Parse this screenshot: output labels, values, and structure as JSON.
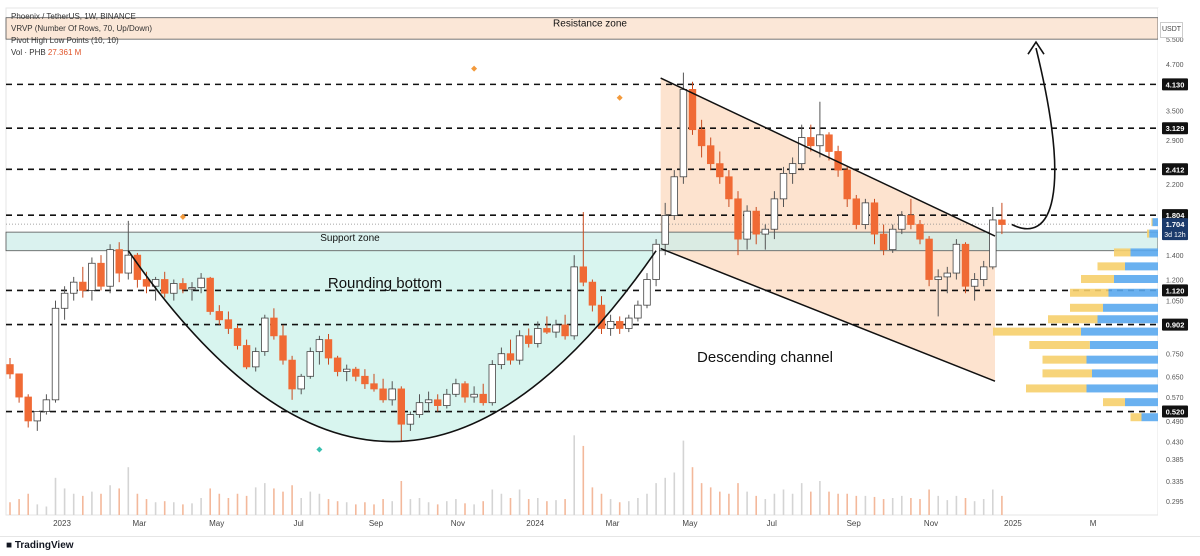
{
  "header": {
    "line1": "Phoenix / TetherUS, 1W, BINANCE",
    "line2": "VRVP (Number Of Rows, 70, Up/Down)",
    "line3": "Pivot High Low Points (10, 10)",
    "line4_label": "Vol · PHB",
    "line4_value": "27.361 M",
    "quote": "USDT"
  },
  "footer": {
    "brand": "TradingView"
  },
  "colors": {
    "up": "#9e9e9e",
    "down": "#f06a35",
    "cupFill": "#d8f5ef",
    "channelFill": "#fde3cf",
    "support": "#cdeee9",
    "resistance": "#fbe7d7",
    "volDown": "#f3b89b",
    "volUp": "#d4d4d4",
    "profileUp": "#5aa9ee",
    "profileDown": "#f6cf6b"
  },
  "chart_data": {
    "type": "candlestick",
    "title": "Phoenix / TetherUS, 1W, BINANCE",
    "y_scale": "log",
    "ylim": [
      0.27,
      6.7
    ],
    "y_ticks": [
      5.5,
      4.7,
      4.13,
      3.5,
      3.129,
      2.9,
      2.412,
      2.2,
      1.804,
      1.704,
      1.4,
      1.2,
      1.12,
      1.05,
      0.902,
      0.75,
      0.65,
      0.57,
      0.52,
      0.49,
      0.43,
      0.385,
      0.335,
      0.295
    ],
    "x_labels": [
      "2023",
      "Mar",
      "May",
      "Jul",
      "Sep",
      "Nov",
      "2024",
      "Mar",
      "May",
      "Jul",
      "Sep",
      "Nov",
      "2025",
      "M"
    ],
    "levels": [
      5.5,
      4.13,
      3.129,
      2.412,
      1.804,
      1.12,
      0.902,
      0.52
    ],
    "level_labels": [
      "4.130",
      "3.129",
      "2.412",
      "1.804",
      "1.120",
      "0.902",
      "0.520"
    ],
    "current_price": "1.704",
    "countdown": "3d 12h",
    "zones": [
      {
        "name": "Resistance zone",
        "range": [
          5.5,
          6.3
        ]
      },
      {
        "name": "Support zone",
        "range": [
          1.44,
          1.62
        ]
      }
    ],
    "patterns": [
      "Rounding bottom",
      "Descending channel"
    ],
    "pivots": [
      {
        "week": 19,
        "price": 1.74,
        "type": "high"
      },
      {
        "week": 51,
        "price": 4.45,
        "type": "high"
      },
      {
        "week": 67,
        "price": 3.7,
        "type": "high"
      },
      {
        "week": 34,
        "price": 0.43,
        "type": "low"
      }
    ],
    "candles": [
      [
        0.7,
        0.73,
        0.64,
        0.66
      ],
      [
        0.66,
        0.66,
        0.55,
        0.57
      ],
      [
        0.57,
        0.58,
        0.47,
        0.49
      ],
      [
        0.49,
        0.51,
        0.46,
        0.52
      ],
      [
        0.52,
        0.58,
        0.51,
        0.56
      ],
      [
        0.56,
        1.05,
        0.55,
        1.0
      ],
      [
        1.0,
        1.15,
        0.93,
        1.1
      ],
      [
        1.1,
        1.22,
        1.05,
        1.18
      ],
      [
        1.18,
        1.3,
        1.07,
        1.12
      ],
      [
        1.12,
        1.38,
        1.05,
        1.33
      ],
      [
        1.33,
        1.4,
        1.12,
        1.15
      ],
      [
        1.15,
        1.5,
        1.1,
        1.45
      ],
      [
        1.45,
        1.52,
        1.18,
        1.25
      ],
      [
        1.25,
        1.74,
        1.2,
        1.4
      ],
      [
        1.4,
        1.42,
        1.14,
        1.2
      ],
      [
        1.2,
        1.26,
        1.1,
        1.15
      ],
      [
        1.15,
        1.22,
        1.05,
        1.2
      ],
      [
        1.2,
        1.26,
        1.07,
        1.1
      ],
      [
        1.1,
        1.2,
        1.05,
        1.17
      ],
      [
        1.17,
        1.21,
        1.1,
        1.13
      ],
      [
        1.13,
        1.18,
        1.05,
        1.14
      ],
      [
        1.14,
        1.25,
        1.1,
        1.21
      ],
      [
        1.21,
        1.22,
        0.96,
        0.98
      ],
      [
        0.98,
        1.02,
        0.9,
        0.93
      ],
      [
        0.93,
        0.98,
        0.85,
        0.88
      ],
      [
        0.88,
        0.9,
        0.77,
        0.79
      ],
      [
        0.79,
        0.82,
        0.68,
        0.69
      ],
      [
        0.69,
        0.78,
        0.67,
        0.76
      ],
      [
        0.76,
        0.96,
        0.74,
        0.94
      ],
      [
        0.94,
        1.0,
        0.82,
        0.84
      ],
      [
        0.84,
        0.9,
        0.7,
        0.72
      ],
      [
        0.72,
        0.74,
        0.56,
        0.6
      ],
      [
        0.6,
        0.66,
        0.58,
        0.65
      ],
      [
        0.65,
        0.78,
        0.64,
        0.76
      ],
      [
        0.76,
        0.84,
        0.7,
        0.82
      ],
      [
        0.82,
        0.85,
        0.7,
        0.73
      ],
      [
        0.73,
        0.74,
        0.65,
        0.67
      ],
      [
        0.67,
        0.7,
        0.63,
        0.68
      ],
      [
        0.68,
        0.69,
        0.63,
        0.65
      ],
      [
        0.65,
        0.68,
        0.6,
        0.62
      ],
      [
        0.62,
        0.66,
        0.59,
        0.6
      ],
      [
        0.6,
        0.64,
        0.55,
        0.56
      ],
      [
        0.56,
        0.63,
        0.54,
        0.6
      ],
      [
        0.6,
        0.61,
        0.43,
        0.48
      ],
      [
        0.48,
        0.52,
        0.46,
        0.51
      ],
      [
        0.51,
        0.58,
        0.5,
        0.55
      ],
      [
        0.55,
        0.59,
        0.52,
        0.56
      ],
      [
        0.56,
        0.58,
        0.52,
        0.54
      ],
      [
        0.54,
        0.6,
        0.53,
        0.58
      ],
      [
        0.58,
        0.64,
        0.57,
        0.62
      ],
      [
        0.62,
        0.63,
        0.55,
        0.57
      ],
      [
        0.57,
        0.61,
        0.55,
        0.58
      ],
      [
        0.58,
        0.62,
        0.54,
        0.55
      ],
      [
        0.55,
        0.72,
        0.54,
        0.7
      ],
      [
        0.7,
        0.78,
        0.68,
        0.75
      ],
      [
        0.75,
        0.82,
        0.7,
        0.72
      ],
      [
        0.72,
        0.87,
        0.7,
        0.84
      ],
      [
        0.84,
        0.88,
        0.78,
        0.8
      ],
      [
        0.8,
        0.92,
        0.78,
        0.88
      ],
      [
        0.88,
        0.95,
        0.85,
        0.86
      ],
      [
        0.86,
        0.93,
        0.83,
        0.9
      ],
      [
        0.9,
        0.96,
        0.82,
        0.84
      ],
      [
        0.84,
        1.4,
        0.82,
        1.3
      ],
      [
        1.3,
        1.84,
        1.15,
        1.18
      ],
      [
        1.18,
        1.2,
        0.98,
        1.02
      ],
      [
        1.02,
        1.08,
        0.85,
        0.88
      ],
      [
        0.88,
        0.96,
        0.84,
        0.92
      ],
      [
        0.92,
        0.95,
        0.85,
        0.88
      ],
      [
        0.88,
        0.96,
        0.86,
        0.94
      ],
      [
        0.94,
        1.05,
        0.92,
        1.02
      ],
      [
        1.02,
        1.25,
        1.0,
        1.2
      ],
      [
        1.2,
        1.55,
        1.15,
        1.5
      ],
      [
        1.5,
        1.95,
        1.4,
        1.8
      ],
      [
        1.8,
        2.4,
        1.75,
        2.3
      ],
      [
        2.3,
        4.45,
        2.2,
        4.0
      ],
      [
        4.0,
        4.2,
        3.0,
        3.1
      ],
      [
        3.1,
        3.3,
        2.6,
        2.8
      ],
      [
        2.8,
        2.95,
        2.4,
        2.5
      ],
      [
        2.5,
        2.7,
        2.2,
        2.3
      ],
      [
        2.3,
        2.4,
        1.9,
        2.0
      ],
      [
        2.0,
        2.1,
        1.4,
        1.55
      ],
      [
        1.55,
        1.92,
        1.45,
        1.85
      ],
      [
        1.85,
        1.9,
        1.5,
        1.6
      ],
      [
        1.6,
        1.7,
        1.45,
        1.65
      ],
      [
        1.65,
        2.1,
        1.55,
        2.0
      ],
      [
        2.0,
        2.45,
        1.9,
        2.35
      ],
      [
        2.35,
        2.6,
        2.2,
        2.5
      ],
      [
        2.5,
        3.2,
        2.4,
        2.95
      ],
      [
        2.95,
        3.2,
        2.7,
        2.8
      ],
      [
        2.8,
        3.7,
        2.6,
        3.0
      ],
      [
        3.0,
        3.05,
        2.55,
        2.7
      ],
      [
        2.7,
        2.8,
        2.3,
        2.4
      ],
      [
        2.4,
        2.45,
        1.9,
        2.0
      ],
      [
        2.0,
        2.05,
        1.65,
        1.7
      ],
      [
        1.7,
        2.0,
        1.65,
        1.95
      ],
      [
        1.95,
        2.0,
        1.5,
        1.6
      ],
      [
        1.6,
        1.7,
        1.4,
        1.45
      ],
      [
        1.45,
        1.7,
        1.42,
        1.65
      ],
      [
        1.65,
        1.85,
        1.6,
        1.8
      ],
      [
        1.8,
        2.0,
        1.65,
        1.7
      ],
      [
        1.7,
        1.75,
        1.5,
        1.55
      ],
      [
        1.55,
        1.58,
        1.15,
        1.2
      ],
      [
        1.2,
        1.28,
        0.95,
        1.22
      ],
      [
        1.22,
        1.3,
        1.1,
        1.25
      ],
      [
        1.25,
        1.55,
        1.2,
        1.5
      ],
      [
        1.5,
        1.52,
        1.1,
        1.15
      ],
      [
        1.15,
        1.25,
        1.05,
        1.2
      ],
      [
        1.2,
        1.35,
        1.15,
        1.3
      ],
      [
        1.3,
        1.9,
        1.28,
        1.75
      ],
      [
        1.75,
        1.95,
        1.6,
        1.7
      ]
    ],
    "volume": [
      1.2,
      1.5,
      2.0,
      1.0,
      0.8,
      3.5,
      2.5,
      2.0,
      1.8,
      2.2,
      2.0,
      2.8,
      2.5,
      4.5,
      2.0,
      1.5,
      1.2,
      1.3,
      1.2,
      1.0,
      1.1,
      1.6,
      2.5,
      2.0,
      1.6,
      2.0,
      1.8,
      2.6,
      3.0,
      2.5,
      2.2,
      2.8,
      1.6,
      2.2,
      2.0,
      1.5,
      1.3,
      1.2,
      1.0,
      1.2,
      1.0,
      1.5,
      1.3,
      3.2,
      1.5,
      1.6,
      1.2,
      1.0,
      1.3,
      1.5,
      1.1,
      1.0,
      1.3,
      2.4,
      2.0,
      1.6,
      2.4,
      1.5,
      1.6,
      1.3,
      1.4,
      1.5,
      7.5,
      6.5,
      2.6,
      2.0,
      1.5,
      1.2,
      1.3,
      1.6,
      2.0,
      3.0,
      3.5,
      4.0,
      7.0,
      4.5,
      3.0,
      2.6,
      2.2,
      2.0,
      3.0,
      2.2,
      1.8,
      1.5,
      2.0,
      2.4,
      2.0,
      3.0,
      2.2,
      3.2,
      2.2,
      2.0,
      2.0,
      1.8,
      1.8,
      1.7,
      1.5,
      1.6,
      1.8,
      1.6,
      1.5,
      2.4,
      1.8,
      1.4,
      1.8,
      1.6,
      1.3,
      1.5,
      2.4,
      1.8
    ],
    "volume_profile": [
      {
        "price": 1.72,
        "up": 0.05,
        "down": 0.01
      },
      {
        "price": 1.6,
        "up": 0.08,
        "down": 0.02
      },
      {
        "price": 1.42,
        "up": 0.25,
        "down": 0.15
      },
      {
        "price": 1.3,
        "up": 0.3,
        "down": 0.25
      },
      {
        "price": 1.2,
        "up": 0.4,
        "down": 0.3
      },
      {
        "price": 1.1,
        "up": 0.45,
        "down": 0.35
      },
      {
        "price": 1.0,
        "up": 0.5,
        "down": 0.3
      },
      {
        "price": 0.93,
        "up": 0.55,
        "down": 0.45
      },
      {
        "price": 0.86,
        "up": 0.7,
        "down": 0.8
      },
      {
        "price": 0.79,
        "up": 0.62,
        "down": 0.55
      },
      {
        "price": 0.72,
        "up": 0.65,
        "down": 0.4
      },
      {
        "price": 0.66,
        "up": 0.6,
        "down": 0.45
      },
      {
        "price": 0.6,
        "up": 0.65,
        "down": 0.55
      },
      {
        "price": 0.55,
        "up": 0.3,
        "down": 0.2
      },
      {
        "price": 0.5,
        "up": 0.15,
        "down": 0.1
      }
    ]
  }
}
